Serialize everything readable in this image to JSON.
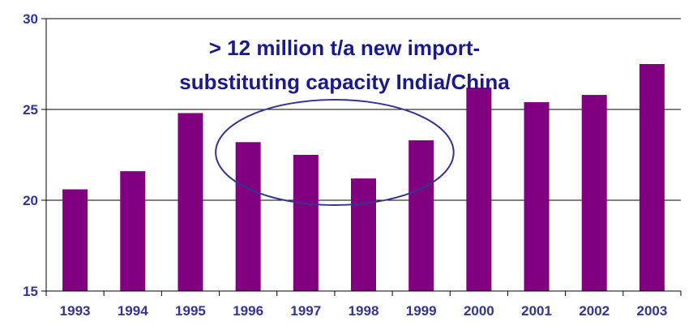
{
  "chart_data": {
    "type": "bar",
    "categories": [
      "1993",
      "1994",
      "1995",
      "1996",
      "1997",
      "1998",
      "1999",
      "2000",
      "2001",
      "2002",
      "2003"
    ],
    "values": [
      20.6,
      21.6,
      24.8,
      23.2,
      22.5,
      21.2,
      23.3,
      26.2,
      25.4,
      25.8,
      27.5
    ],
    "yticks": [
      "15",
      "20",
      "25",
      "30"
    ],
    "ylim": [
      15,
      30
    ],
    "grid": true,
    "bar_color": "#800080",
    "annotation": {
      "line1": "> 12 million t/a new import-",
      "line2": "substituting capacity India/China",
      "highlight_range": [
        "1996",
        "1999"
      ]
    }
  }
}
